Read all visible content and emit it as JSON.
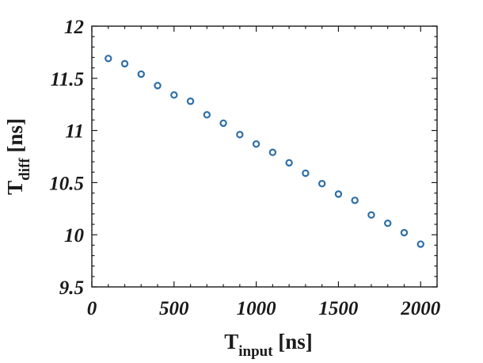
{
  "chart_data": {
    "type": "scatter",
    "title": "",
    "xlabel": {
      "main": "T",
      "sub": "input",
      "unit": " [ns]"
    },
    "ylabel": {
      "main": "T",
      "sub": "diff",
      "unit": " [ns]"
    },
    "xlim": [
      0,
      2100
    ],
    "ylim": [
      9.5,
      12
    ],
    "xticks": [
      0,
      500,
      1000,
      1500,
      2000
    ],
    "yticks": [
      9.5,
      10,
      10.5,
      11,
      11.5,
      12
    ],
    "xtick_labels": [
      "0",
      "500",
      "1000",
      "1500",
      "2000"
    ],
    "ytick_labels": [
      "9.5",
      "10",
      "10.5",
      "11",
      "11.5",
      "12"
    ],
    "marker": "circle-open",
    "color": "#2e6fa7",
    "grid": false,
    "series": [
      {
        "x": [
          100,
          200,
          300,
          400,
          500,
          600,
          700,
          800,
          900,
          1000,
          1100,
          1200,
          1300,
          1400,
          1500,
          1600,
          1700,
          1800,
          1900,
          2000
        ],
        "y": [
          11.69,
          11.64,
          11.54,
          11.43,
          11.34,
          11.28,
          11.15,
          11.07,
          10.96,
          10.87,
          10.79,
          10.69,
          10.59,
          10.49,
          10.39,
          10.33,
          10.19,
          10.11,
          10.02,
          9.91
        ]
      }
    ]
  }
}
